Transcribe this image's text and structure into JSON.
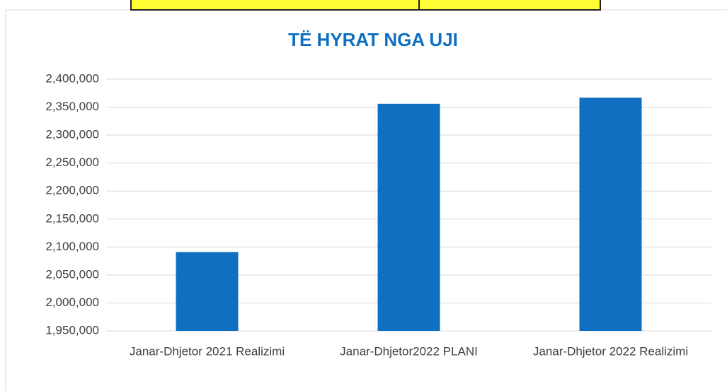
{
  "chart_data": {
    "type": "bar",
    "title": "TË HYRAT NGA UJI",
    "categories": [
      "Janar-Dhjetor 2021 Realizimi",
      "Janar-Dhjetor2022 PLANI",
      "Janar-Dhjetor 2022 Realizimi"
    ],
    "values": [
      2091000,
      2356000,
      2367000
    ],
    "color": "#0f6fc0",
    "ylim": [
      1950000,
      2400000
    ],
    "yticks": [
      {
        "value": 1950000,
        "label": "1,950,000"
      },
      {
        "value": 2000000,
        "label": "2,000,000"
      },
      {
        "value": 2050000,
        "label": "2,050,000"
      },
      {
        "value": 2100000,
        "label": "2,100,000"
      },
      {
        "value": 2150000,
        "label": "2,150,000"
      },
      {
        "value": 2200000,
        "label": "2,200,000"
      },
      {
        "value": 2250000,
        "label": "2,250,000"
      },
      {
        "value": 2300000,
        "label": "2,300,000"
      },
      {
        "value": 2350000,
        "label": "2,350,000"
      },
      {
        "value": 2400000,
        "label": "2,400,000"
      }
    ],
    "grid": true
  }
}
